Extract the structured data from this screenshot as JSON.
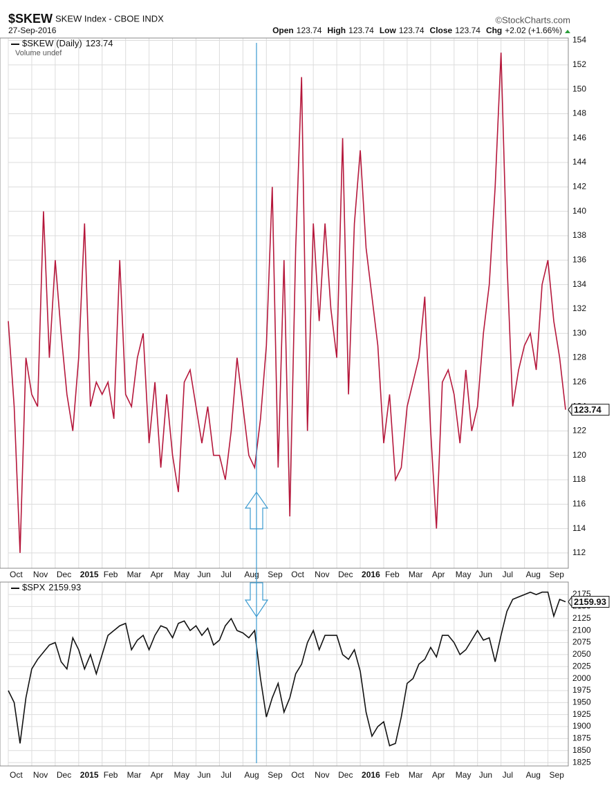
{
  "header": {
    "symbol": "$SKEW",
    "name": "SKEW Index - CBOE INDX",
    "credit": "©StockCharts.com",
    "date": "27-Sep-2016",
    "ohlc": [
      {
        "label": "Open",
        "value": 123.74
      },
      {
        "label": "High",
        "value": 123.74
      },
      {
        "label": "Low",
        "value": 123.74
      },
      {
        "label": "Close",
        "value": 123.74
      },
      {
        "label": "Chg",
        "value": "+2.02 (+1.66%)"
      }
    ]
  },
  "chart_data": [
    {
      "type": "line",
      "annotation": "Volume undef",
      "grid": true,
      "categories": [
        "Oct",
        null,
        null,
        null,
        "Nov",
        null,
        null,
        null,
        "Dec",
        null,
        null,
        null,
        "2015",
        null,
        null,
        null,
        "Feb",
        null,
        null,
        null,
        "Mar",
        null,
        null,
        null,
        "Apr",
        null,
        null,
        null,
        "May",
        null,
        null,
        null,
        "Jun",
        null,
        null,
        null,
        "Jul",
        null,
        null,
        null,
        "Aug",
        null,
        null,
        null,
        "Sep",
        null,
        null,
        null,
        "Oct",
        null,
        null,
        null,
        "Nov",
        null,
        null,
        null,
        "Dec",
        null,
        null,
        null,
        "2016",
        null,
        null,
        null,
        "Feb",
        null,
        null,
        null,
        "Mar",
        null,
        null,
        null,
        "Apr",
        null,
        null,
        null,
        "May",
        null,
        null,
        null,
        "Jun",
        null,
        null,
        null,
        "Jul",
        null,
        null,
        null,
        "Aug",
        null,
        null,
        null,
        "Sep",
        null,
        null,
        null
      ],
      "series": [
        {
          "name": "$SKEW (Daily)",
          "color": "#b5173b",
          "values": [
            131,
            124,
            112,
            128,
            125,
            124,
            140,
            128,
            136,
            130,
            125,
            122,
            128,
            139,
            124,
            126,
            125,
            126,
            123,
            136,
            125,
            124,
            128,
            130,
            121,
            126,
            119,
            125,
            120,
            117,
            126,
            127,
            124,
            121,
            124,
            120,
            120,
            118,
            122,
            128,
            124,
            120,
            119,
            123,
            129,
            142,
            119,
            136,
            115,
            137,
            151,
            122,
            139,
            131,
            139,
            132,
            128,
            146,
            125,
            139,
            145,
            137,
            133,
            129,
            121,
            125,
            118,
            119,
            124,
            126,
            128,
            133,
            122,
            114,
            126,
            127,
            125,
            121,
            127,
            122,
            124,
            130,
            134,
            142,
            153,
            136,
            124,
            127,
            129,
            130,
            127,
            134,
            136,
            131,
            128,
            123.74
          ]
        }
      ],
      "ylim": [
        110.75,
        154.2
      ],
      "yticks": [
        112,
        114,
        116,
        118,
        120,
        122,
        124,
        126,
        128,
        130,
        132,
        134,
        136,
        138,
        140,
        142,
        144,
        146,
        148,
        150,
        152,
        154
      ]
    },
    {
      "type": "line",
      "grid": true,
      "categories": [
        "Oct",
        null,
        null,
        null,
        "Nov",
        null,
        null,
        null,
        "Dec",
        null,
        null,
        null,
        "2015",
        null,
        null,
        null,
        "Feb",
        null,
        null,
        null,
        "Mar",
        null,
        null,
        null,
        "Apr",
        null,
        null,
        null,
        "May",
        null,
        null,
        null,
        "Jun",
        null,
        null,
        null,
        "Jul",
        null,
        null,
        null,
        "Aug",
        null,
        null,
        null,
        "Sep",
        null,
        null,
        null,
        "Oct",
        null,
        null,
        null,
        "Nov",
        null,
        null,
        null,
        "Dec",
        null,
        null,
        null,
        "2016",
        null,
        null,
        null,
        "Feb",
        null,
        null,
        null,
        "Mar",
        null,
        null,
        null,
        "Apr",
        null,
        null,
        null,
        "May",
        null,
        null,
        null,
        "Jun",
        null,
        null,
        null,
        "Jul",
        null,
        null,
        null,
        "Aug",
        null,
        null,
        null,
        "Sep",
        null,
        null,
        null
      ],
      "series": [
        {
          "name": "$SPX",
          "color": "#111111",
          "values": [
            1975,
            1950,
            1865,
            1960,
            2020,
            2040,
            2055,
            2070,
            2075,
            2035,
            2020,
            2085,
            2060,
            2020,
            2050,
            2010,
            2050,
            2090,
            2100,
            2110,
            2115,
            2060,
            2080,
            2090,
            2060,
            2090,
            2110,
            2105,
            2085,
            2115,
            2120,
            2100,
            2110,
            2090,
            2105,
            2070,
            2080,
            2110,
            2125,
            2100,
            2095,
            2085,
            2100,
            2000,
            1920,
            1960,
            1990,
            1930,
            1960,
            2010,
            2030,
            2075,
            2100,
            2060,
            2090,
            2090,
            2090,
            2050,
            2040,
            2060,
            2015,
            1930,
            1880,
            1900,
            1910,
            1860,
            1865,
            1920,
            1990,
            2000,
            2030,
            2040,
            2065,
            2045,
            2090,
            2090,
            2075,
            2050,
            2060,
            2080,
            2100,
            2080,
            2085,
            2035,
            2090,
            2140,
            2165,
            2170,
            2175,
            2180,
            2175,
            2180,
            2180,
            2130,
            2165,
            2159.93
          ]
        }
      ],
      "ylim": [
        1818,
        2201
      ],
      "yticks": [
        1825,
        1850,
        1875,
        1900,
        1925,
        1950,
        1975,
        2000,
        2025,
        2050,
        2075,
        2100,
        2125,
        2150,
        2175
      ]
    }
  ]
}
